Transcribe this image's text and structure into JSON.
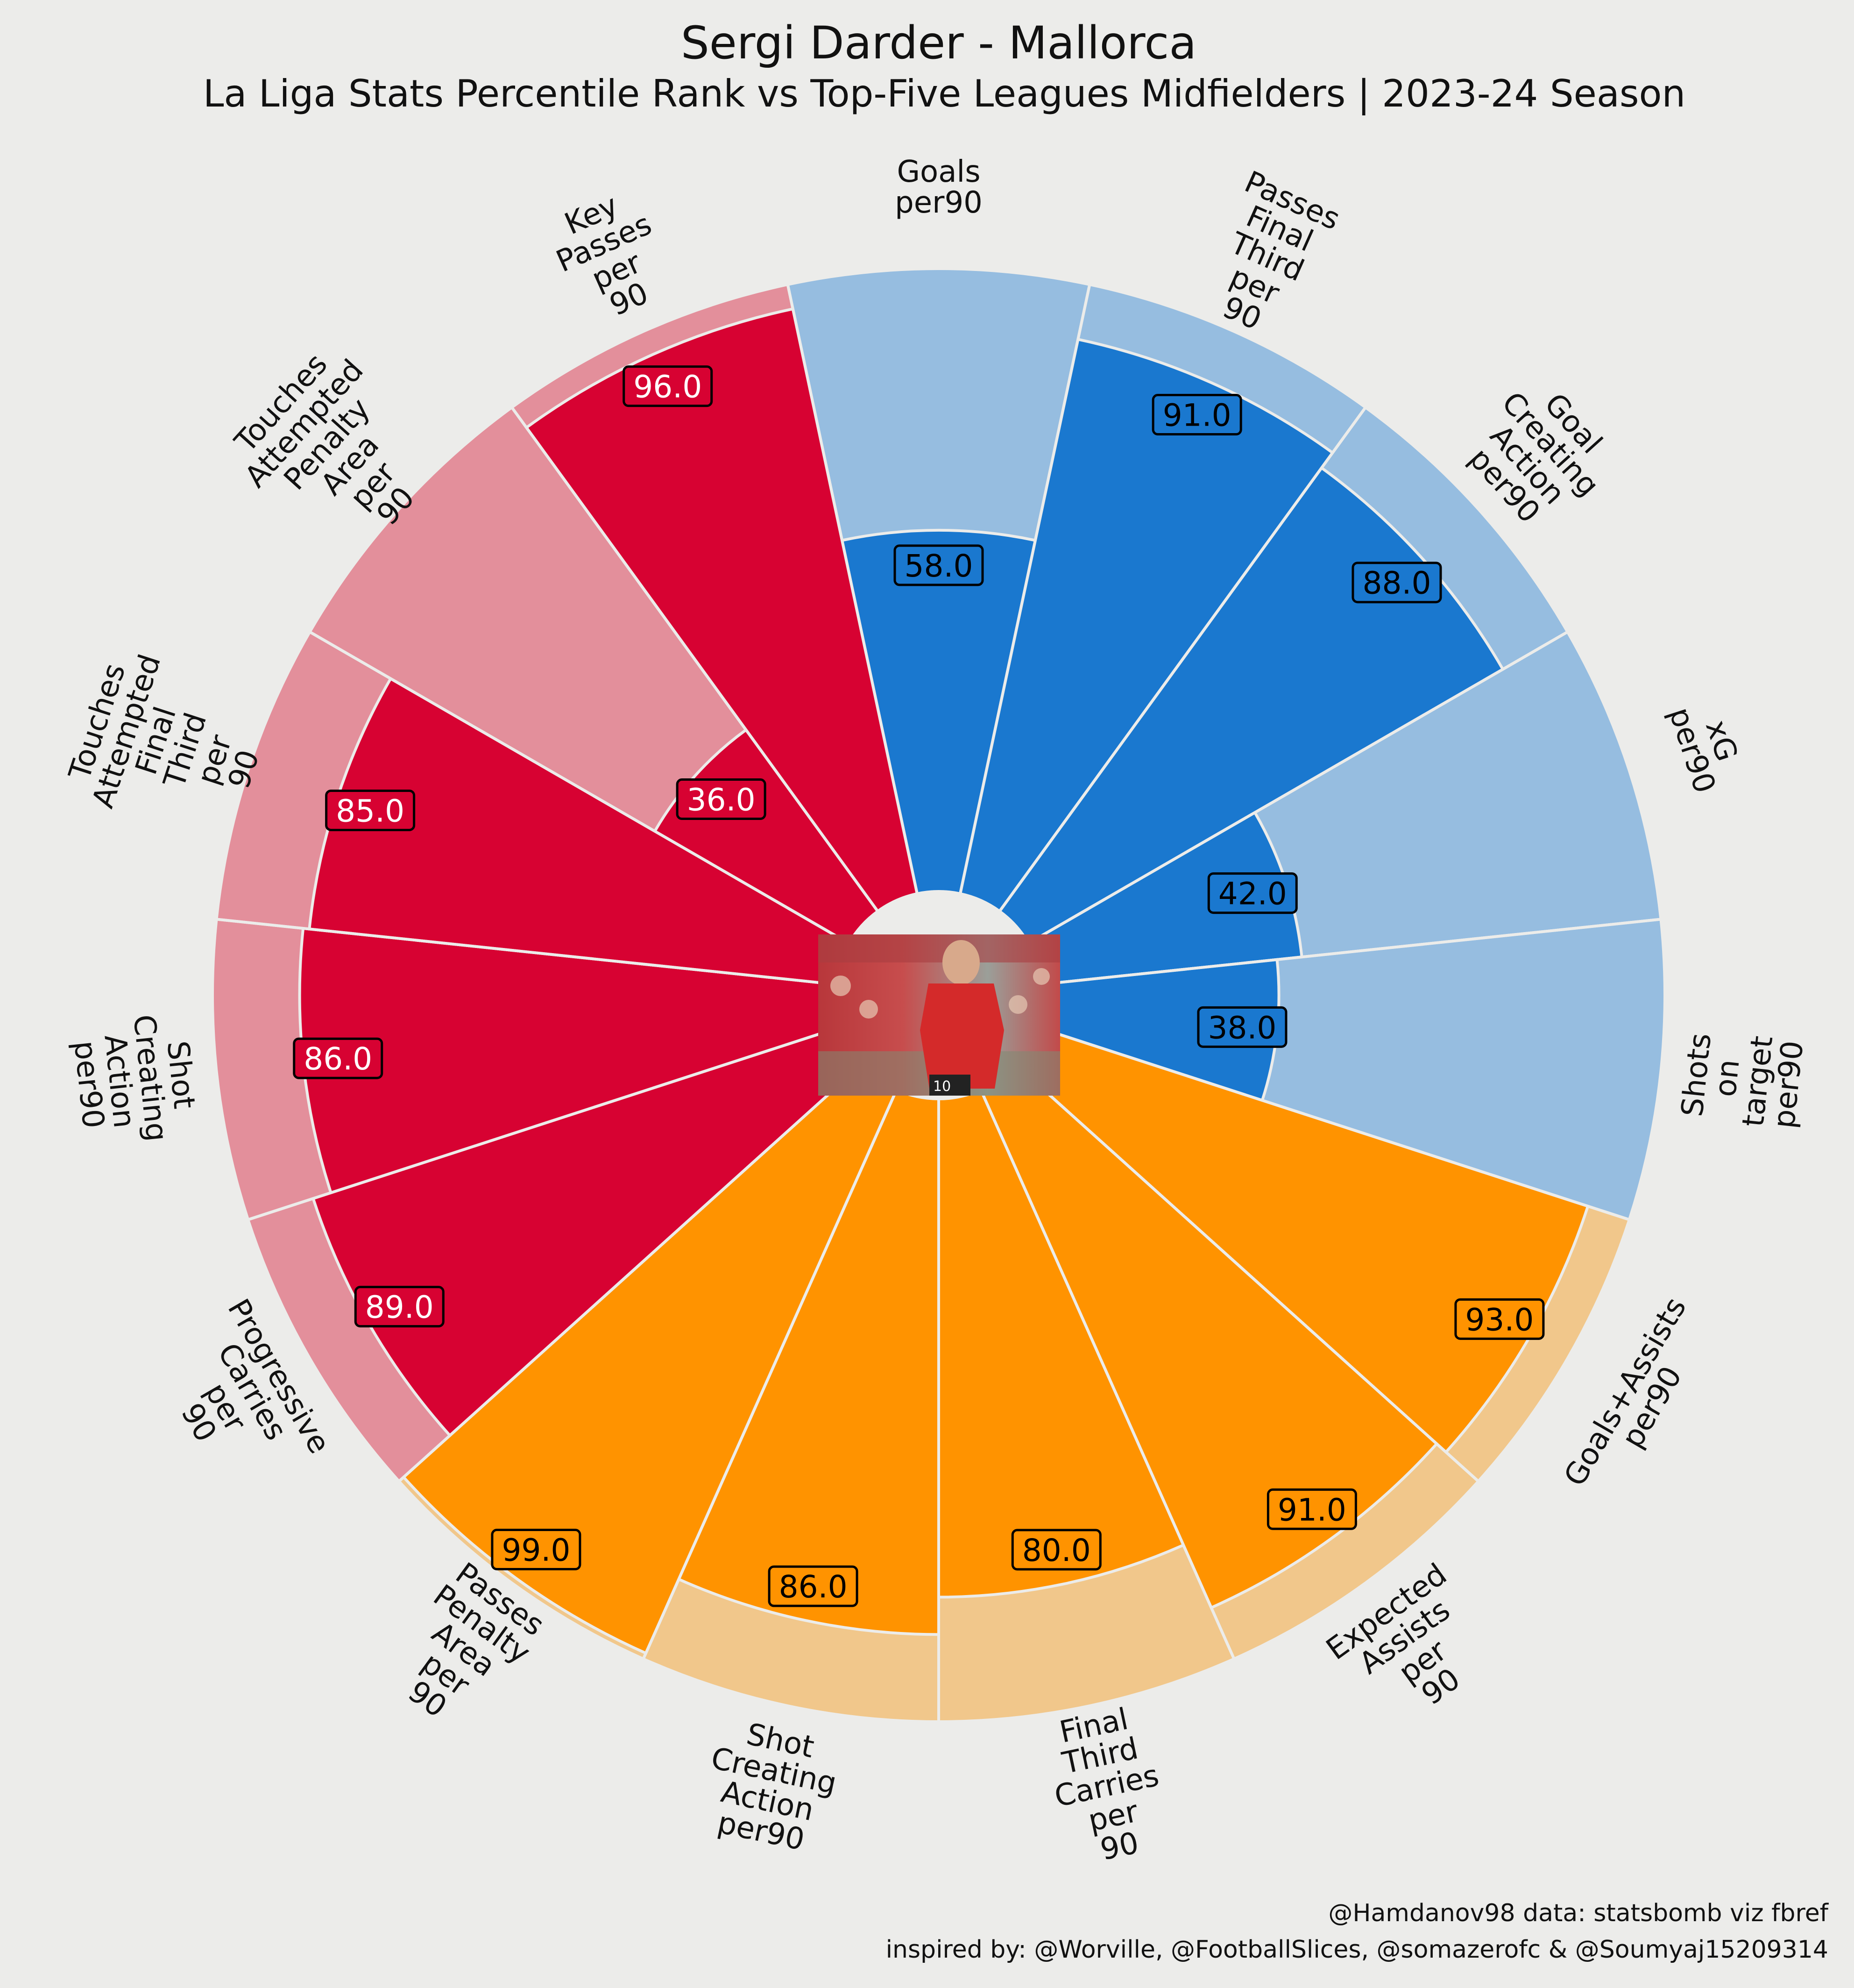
{
  "chart_data": {
    "type": "radar-pizza",
    "title": "Sergi Darder - Mallorca",
    "subtitle": "La Liga Stats Percentile Rank vs Top-Five Leagues  Midfielders | 2023-24 Season",
    "credit_line1": "@Hamdanov98 data: statsbomb viz fbref",
    "credit_line2": "inspired by: @Worville, @FootballSlices, @somazerofc & @Soumyaj15209314",
    "rlim": [
      0,
      100
    ],
    "colors": {
      "attacking": "#1a78cf",
      "attacking_bg": "#96bde0",
      "possession": "#ff9300",
      "possession_bg": "#f1c78b",
      "creation": "#d70232",
      "creation_bg": "#e38f9b",
      "label_text_light": "#ffffff",
      "label_text_dark": "#000000",
      "background": "#ececea"
    },
    "params": [
      {
        "name": "Goals\nper90",
        "value": 58.0,
        "group": "attacking"
      },
      {
        "name": "Passes\nFinal\nThird\nper\n90",
        "value": 91.0,
        "group": "attacking"
      },
      {
        "name": "Goal\nCreating\nAction\nper90",
        "value": 88.0,
        "group": "attacking"
      },
      {
        "name": "xG\nper90",
        "value": 42.0,
        "group": "attacking"
      },
      {
        "name": "Shots\non\ntarget\nper90",
        "value": 38.0,
        "group": "attacking"
      },
      {
        "name": "Goals+Assists\nper90",
        "value": 93.0,
        "group": "possession"
      },
      {
        "name": "Expected\nAssists\nper\n90",
        "value": 91.0,
        "group": "possession"
      },
      {
        "name": "Final\nThird\nCarries\nper\n90",
        "value": 80.0,
        "group": "possession"
      },
      {
        "name": "Shot\nCreating\nAction\nper90",
        "value": 86.0,
        "group": "possession"
      },
      {
        "name": "Passes\nPenalty\nArea\nper\n90",
        "value": 99.0,
        "group": "possession"
      },
      {
        "name": "Progressive\nCarries\nper\n90",
        "value": 89.0,
        "group": "creation"
      },
      {
        "name": "Shot\nCreating\nAction\nper90",
        "value": 86.0,
        "group": "creation"
      },
      {
        "name": "Touches\nAttempted\nFinal\nThird\nper\n90",
        "value": 85.0,
        "group": "creation"
      },
      {
        "name": "Touches\nAttempted\nPenalty\nArea\nper\n90",
        "value": 36.0,
        "group": "creation"
      },
      {
        "name": "Key\nPasses\nper\n90",
        "value": 96.0,
        "group": "creation"
      }
    ]
  },
  "center_image": {
    "icon": "player-photo",
    "jersey_number": "10"
  }
}
